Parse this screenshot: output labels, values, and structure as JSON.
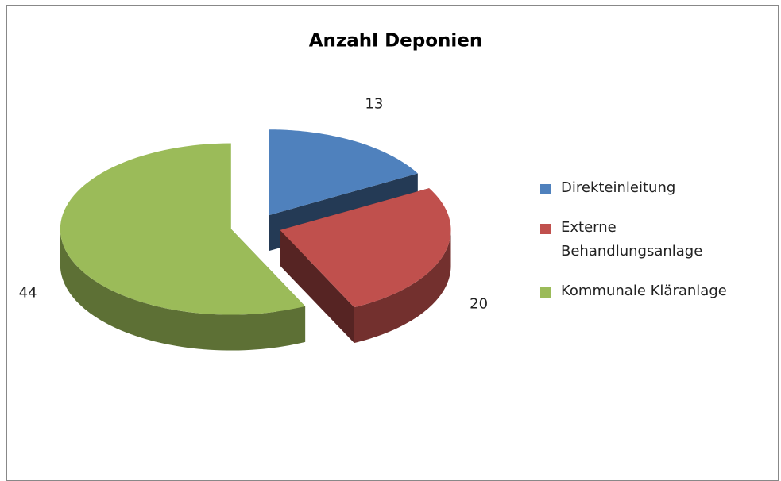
{
  "chart_data": {
    "type": "pie3d",
    "title": "Anzahl Deponien",
    "categories": [
      "Direkteinleitung",
      "Externe Behandlungsanlage",
      "Kommunale Kläranlage"
    ],
    "values": [
      13,
      20,
      44
    ],
    "colors": [
      "#4f81bd",
      "#c0504d",
      "#9bbb59"
    ],
    "legend": "right"
  }
}
